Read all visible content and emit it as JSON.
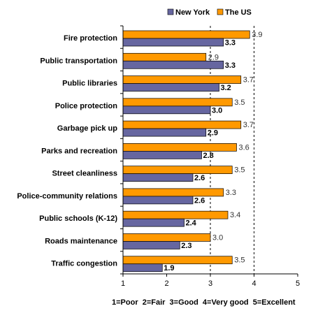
{
  "chart_data": {
    "type": "bar",
    "orientation": "horizontal",
    "categories": [
      "Fire protection",
      "Public transportation",
      "Public libraries",
      "Police protection",
      "Garbage pick up",
      "Parks and recreation",
      "Street cleanliness",
      "Police-community relations",
      "Public schools (K-12)",
      "Roads maintenance",
      "Traffic congestion"
    ],
    "series": [
      {
        "name": "New York",
        "color": "#6666a0",
        "values": [
          3.3,
          3.3,
          3.2,
          3.0,
          2.9,
          2.8,
          2.6,
          2.6,
          2.4,
          2.3,
          1.9
        ],
        "labels": [
          "3.3",
          "3.3",
          "3.2",
          "3.0",
          "2.9",
          "2.8",
          "2.6",
          "2.6",
          "2.4",
          "2.3",
          "1.9"
        ]
      },
      {
        "name": "The US",
        "color": "#ff9900",
        "values": [
          3.9,
          2.9,
          3.7,
          3.5,
          3.7,
          3.6,
          3.5,
          3.3,
          3.4,
          3.0,
          3.5
        ],
        "labels": [
          "3.9",
          "2.9",
          "3.7",
          "3.5",
          "3.7",
          "3.6",
          "3.5",
          "3.3",
          "3.4",
          "3.0",
          "3.5"
        ]
      }
    ],
    "xlim": [
      1,
      5
    ],
    "xticks": [
      "1",
      "2",
      "3",
      "4",
      "5"
    ],
    "reference_lines": [
      3,
      4
    ],
    "legend": "top-right",
    "grid": false,
    "footnote": "1=Poor  2=Fair  3=Good  4=Very good  5=Excellent"
  }
}
